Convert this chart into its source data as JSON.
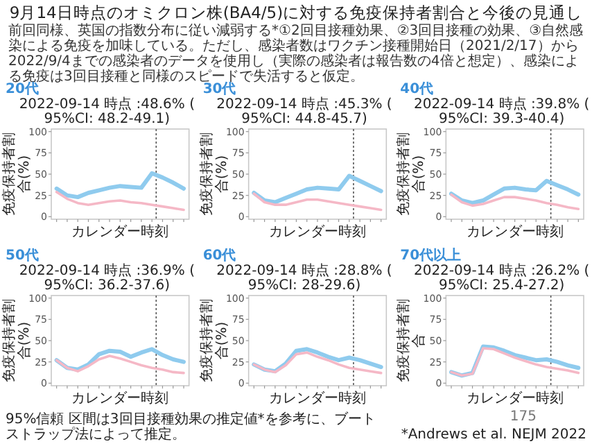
{
  "chart_data": [
    {
      "type": "other",
      "title": "9月14日時点のオミクロン株(BA4/5)に対する免疫保持者割合と今後の見通し",
      "subtitle": "前回同様、英国の指数分布に従い減弱する*①2回目接種効果、②3回目接種の効果、③自然感染による免疫を加味している。ただし、感染者数はワクチン接種開始日（2021/2/17）から2022/9/4までの感染者のデータを使用し（実際の感染者は報告数の4倍と想定）、感染による免疫は3回目接種と同様のスピードで失活すると仮定。",
      "annotations": [
        "95%信頼 区間は3回目接種効果の推定値*を参考に、ブートストラップ法によって推定。",
        "*Andrews et al. NEJM 2022",
        "175"
      ]
    },
    {
      "type": "line",
      "title": "20代",
      "subtitle": "2022-09-14 時点 :48.6%  (95%CI: 48.2-49.1)",
      "xlabel": "カレンダー時刻",
      "ylabel": "免疫保持者割合(%)",
      "categories": [
        null,
        null,
        null,
        null,
        null,
        null,
        null,
        null,
        null,
        null,
        null,
        null,
        null
      ],
      "ylim": [
        -3,
        103
      ],
      "yticks": [
        0,
        25,
        50,
        75,
        100
      ],
      "series": [
        {
          "color": "#8fcbee",
          "values": [
            33,
            25,
            23,
            28,
            31,
            34,
            36,
            35,
            34,
            51,
            46,
            40,
            33
          ]
        },
        {
          "color": "#f5b8c6",
          "values": [
            29,
            21,
            16,
            14,
            16,
            18,
            19,
            17,
            16,
            14,
            12,
            10,
            8
          ]
        }
      ]
    },
    {
      "type": "line",
      "title": "30代",
      "subtitle": "2022-09-14 時点 :45.3%  (95%CI: 44.8-45.7)",
      "xlabel": "カレンダー時刻",
      "ylabel": "免疫保持者割合(%)",
      "categories": [
        null,
        null,
        null,
        null,
        null,
        null,
        null,
        null,
        null,
        null,
        null,
        null,
        null
      ],
      "ylim": [
        -3,
        103
      ],
      "yticks": [
        0,
        25,
        50,
        75,
        100
      ],
      "series": [
        {
          "color": "#8fcbee",
          "values": [
            28,
            19,
            17,
            22,
            27,
            32,
            34,
            33,
            32,
            48,
            42,
            36,
            30
          ]
        },
        {
          "color": "#f5b8c6",
          "values": [
            27,
            17,
            14,
            14,
            17,
            20,
            20,
            18,
            16,
            14,
            12,
            10,
            8
          ]
        }
      ]
    },
    {
      "type": "line",
      "title": "40代",
      "subtitle": "2022-09-14 時点 :39.8%  (95%CI: 39.3-40.4)",
      "xlabel": "カレンダー時刻",
      "ylabel": "免疫保持者割合(%)",
      "categories": [
        null,
        null,
        null,
        null,
        null,
        null,
        null,
        null,
        null,
        null,
        null,
        null,
        null
      ],
      "ylim": [
        -3,
        103
      ],
      "yticks": [
        0,
        25,
        50,
        75,
        100
      ],
      "series": [
        {
          "color": "#8fcbee",
          "values": [
            27,
            19,
            16,
            19,
            26,
            33,
            34,
            32,
            31,
            42,
            37,
            32,
            26
          ]
        },
        {
          "color": "#f5b8c6",
          "values": [
            26,
            17,
            13,
            15,
            19,
            23,
            23,
            21,
            19,
            16,
            14,
            11,
            9
          ]
        }
      ]
    },
    {
      "type": "line",
      "title": "50代",
      "subtitle": "2022-09-14 時点 :36.9%  (95%CI: 36.2-37.6)",
      "xlabel": "カレンダー時刻",
      "ylabel": "免疫保持者割合(%)",
      "categories": [
        null,
        null,
        null,
        null,
        null,
        null,
        null,
        null,
        null,
        null,
        null,
        null,
        null
      ],
      "ylim": [
        -3,
        103
      ],
      "yticks": [
        0,
        25,
        50,
        75,
        100
      ],
      "series": [
        {
          "color": "#8fcbee",
          "values": [
            27,
            18,
            16,
            22,
            34,
            38,
            37,
            31,
            36,
            40,
            33,
            28,
            25
          ]
        },
        {
          "color": "#f5b8c6",
          "values": [
            27,
            18,
            14,
            20,
            28,
            32,
            29,
            25,
            21,
            18,
            16,
            13,
            12
          ]
        }
      ]
    },
    {
      "type": "line",
      "title": "60代",
      "subtitle": "2022-09-14 時点 :28.8%  (95%CI: 28-29.6)",
      "xlabel": "カレンダー時刻",
      "ylabel": "免疫保持者割合(%)",
      "categories": [
        null,
        null,
        null,
        null,
        null,
        null,
        null,
        null,
        null,
        null,
        null,
        null,
        null
      ],
      "ylim": [
        -3,
        103
      ],
      "yticks": [
        0,
        25,
        50,
        75,
        100
      ],
      "series": [
        {
          "color": "#8fcbee",
          "values": [
            22,
            16,
            14,
            23,
            38,
            40,
            36,
            31,
            27,
            30,
            27,
            23,
            19
          ]
        },
        {
          "color": "#f5b8c6",
          "values": [
            22,
            16,
            13,
            21,
            34,
            36,
            31,
            27,
            22,
            18,
            16,
            14,
            12
          ]
        }
      ]
    },
    {
      "type": "line",
      "title": "70代以上",
      "subtitle": "2022-09-14 時点 :26.2%  (95%CI: 25.4-27.2)",
      "xlabel": "カレンダー時刻",
      "ylabel": "免疫保持者割合",
      "categories": [
        null,
        null,
        null,
        null,
        null,
        null,
        null,
        null,
        null,
        null,
        null,
        null,
        null
      ],
      "ylim": [
        -3,
        103
      ],
      "yticks": [
        0,
        25,
        50,
        75,
        100
      ],
      "series": [
        {
          "color": "#8fcbee",
          "values": [
            13,
            9,
            12,
            43,
            42,
            38,
            33,
            30,
            27,
            28,
            25,
            21,
            18
          ]
        },
        {
          "color": "#f5b8c6",
          "values": [
            13,
            9,
            11,
            41,
            40,
            35,
            30,
            26,
            22,
            19,
            17,
            15,
            12
          ]
        }
      ]
    }
  ]
}
